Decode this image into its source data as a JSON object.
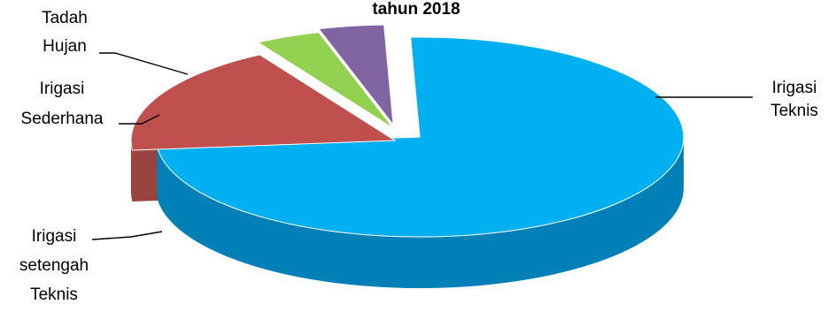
{
  "chart_data": {
    "type": "pie",
    "title": "tahun 2018",
    "categories": [
      "Irigasi Teknis",
      "Irigasi setengah Teknis",
      "Irigasi Sederhana",
      "Tadah Hujan"
    ],
    "values": [
      74,
      18,
      4,
      4
    ],
    "unit": "%",
    "three_d": true,
    "exploded": true,
    "legend": "none",
    "labels": [
      {
        "lines": [
          "Irigasi",
          "Teknis"
        ]
      },
      {
        "lines": [
          "Irigasi",
          "setengah",
          "Teknis"
        ]
      },
      {
        "lines": [
          "Irigasi",
          "Sederhana"
        ]
      },
      {
        "lines": [
          "Tadah",
          "Hujan"
        ]
      }
    ],
    "colors": [
      {
        "top": "#00b0f0",
        "side": "#0080b6"
      },
      {
        "top": "#c0504d",
        "side": "#8f302d"
      },
      {
        "top": "#92d050",
        "side": "#5f9a2a"
      },
      {
        "top": "#8064a2",
        "side": "#5a437a"
      }
    ]
  }
}
